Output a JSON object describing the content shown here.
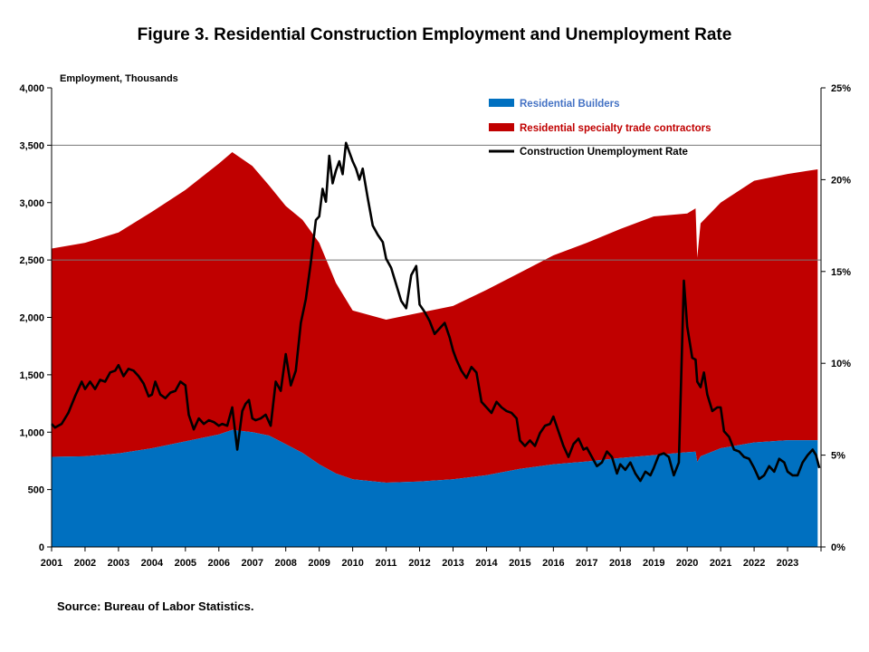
{
  "chart_data": {
    "type": "area",
    "title": "Figure 3. Residential Construction  Employment and Unemployment Rate",
    "ylabel": "Employment, Thousands",
    "y2label": "",
    "xlabel": "",
    "ylim": [
      0,
      4000
    ],
    "y2lim": [
      0,
      25
    ],
    "xlim": [
      2001,
      2024
    ],
    "y_ticks": [
      "0",
      "500",
      "1,000",
      "1,500",
      "2,000",
      "2,500",
      "3,000",
      "3,500",
      "4,000"
    ],
    "y2_ticks": [
      "0%",
      "5%",
      "10%",
      "15%",
      "20%",
      "25%"
    ],
    "x_ticks": [
      "2001",
      "2002",
      "2003",
      "2004",
      "2005",
      "2006",
      "2007",
      "2008",
      "2009",
      "2010",
      "2011",
      "2012",
      "2013",
      "2014",
      "2015",
      "2016",
      "2017",
      "2018",
      "2019",
      "2020",
      "2021",
      "2022",
      "2023"
    ],
    "grid": "horizontal at 2,500 and 3,500",
    "legend_position": "top-center",
    "series": [
      {
        "name": "Residential Builders",
        "kind": "stacked-area",
        "color": "#0070C0",
        "x": [
          2001,
          2002,
          2003,
          2004,
          2005,
          2006,
          2006.4,
          2007,
          2007.5,
          2008,
          2008.5,
          2009,
          2009.5,
          2010,
          2011,
          2012,
          2013,
          2014,
          2015,
          2016,
          2017,
          2018,
          2019,
          2020,
          2020.25,
          2020.3,
          2020.4,
          2021,
          2022,
          2023,
          2023.9
        ],
        "values": [
          785,
          790,
          815,
          860,
          920,
          980,
          1020,
          1000,
          970,
          895,
          820,
          720,
          640,
          590,
          560,
          570,
          590,
          625,
          680,
          720,
          745,
          775,
          800,
          825,
          830,
          740,
          790,
          860,
          910,
          930,
          930
        ]
      },
      {
        "name": "Residential specialty trade contractors",
        "kind": "stacked-area",
        "color": "#C00000",
        "x": [
          2001,
          2002,
          2003,
          2004,
          2005,
          2006,
          2006.4,
          2007,
          2007.5,
          2008,
          2008.5,
          2009,
          2009.5,
          2010,
          2011,
          2012,
          2013,
          2014,
          2015,
          2016,
          2017,
          2018,
          2019,
          2020,
          2020.25,
          2020.3,
          2020.4,
          2021,
          2022,
          2023,
          2023.9
        ],
        "values": [
          1815,
          1860,
          1925,
          2060,
          2190,
          2360,
          2420,
          2320,
          2180,
          2075,
          2030,
          1930,
          1660,
          1470,
          1420,
          1470,
          1510,
          1615,
          1710,
          1820,
          1905,
          1995,
          2080,
          2080,
          2120,
          1780,
          2030,
          2140,
          2280,
          2320,
          2360
        ]
      },
      {
        "name": "Construction Unemployment Rate",
        "kind": "line",
        "axis": "right",
        "color": "#000000",
        "x": [
          2001,
          2001.1,
          2001.3,
          2001.5,
          2001.7,
          2001.9,
          2002,
          2002.15,
          2002.3,
          2002.45,
          2002.6,
          2002.75,
          2002.9,
          2003,
          2003.15,
          2003.3,
          2003.45,
          2003.6,
          2003.75,
          2003.9,
          2004,
          2004.1,
          2004.25,
          2004.4,
          2004.55,
          2004.7,
          2004.85,
          2005,
          2005.1,
          2005.25,
          2005.4,
          2005.55,
          2005.7,
          2005.85,
          2006,
          2006.1,
          2006.25,
          2006.4,
          2006.55,
          2006.7,
          2006.8,
          2006.9,
          2007,
          2007.1,
          2007.25,
          2007.4,
          2007.55,
          2007.7,
          2007.85,
          2008,
          2008.15,
          2008.3,
          2008.45,
          2008.6,
          2008.75,
          2008.9,
          2009,
          2009.1,
          2009.2,
          2009.3,
          2009.4,
          2009.5,
          2009.6,
          2009.7,
          2009.8,
          2009.9,
          2010,
          2010.1,
          2010.2,
          2010.3,
          2010.45,
          2010.6,
          2010.75,
          2010.9,
          2011,
          2011.15,
          2011.3,
          2011.45,
          2011.6,
          2011.75,
          2011.9,
          2012,
          2012.15,
          2012.3,
          2012.45,
          2012.6,
          2012.75,
          2012.9,
          2013,
          2013.1,
          2013.25,
          2013.4,
          2013.55,
          2013.7,
          2013.85,
          2014,
          2014.15,
          2014.3,
          2014.45,
          2014.6,
          2014.75,
          2014.9,
          2015,
          2015.15,
          2015.3,
          2015.45,
          2015.6,
          2015.75,
          2015.9,
          2016,
          2016.15,
          2016.3,
          2016.45,
          2016.6,
          2016.75,
          2016.9,
          2017,
          2017.15,
          2017.3,
          2017.45,
          2017.6,
          2017.75,
          2017.9,
          2018,
          2018.15,
          2018.3,
          2018.45,
          2018.6,
          2018.75,
          2018.9,
          2019,
          2019.15,
          2019.3,
          2019.45,
          2019.6,
          2019.75,
          2019.9,
          2020,
          2020.15,
          2020.25,
          2020.3,
          2020.4,
          2020.5,
          2020.6,
          2020.75,
          2020.9,
          2021,
          2021.1,
          2021.25,
          2021.4,
          2021.55,
          2021.7,
          2021.85,
          2022,
          2022.15,
          2022.3,
          2022.45,
          2022.6,
          2022.75,
          2022.9,
          2023,
          2023.15,
          2023.3,
          2023.45,
          2023.6,
          2023.75,
          2023.85,
          2023.95
        ],
        "values": [
          6.7,
          6.5,
          6.7,
          7.3,
          8.2,
          9.0,
          8.6,
          9.0,
          8.6,
          9.1,
          9.0,
          9.5,
          9.6,
          9.9,
          9.3,
          9.7,
          9.6,
          9.3,
          8.9,
          8.2,
          8.3,
          9.0,
          8.3,
          8.1,
          8.4,
          8.5,
          9.0,
          8.8,
          7.2,
          6.4,
          7.0,
          6.7,
          6.9,
          6.8,
          6.6,
          6.7,
          6.6,
          7.6,
          5.3,
          7.4,
          7.8,
          8.0,
          7.0,
          6.9,
          7.0,
          7.2,
          6.6,
          9.0,
          8.5,
          10.5,
          8.8,
          9.6,
          12.2,
          13.5,
          15.5,
          17.8,
          18.0,
          19.5,
          18.8,
          21.3,
          19.8,
          20.5,
          21.0,
          20.3,
          22.0,
          21.5,
          21.0,
          20.6,
          20.0,
          20.6,
          19.0,
          17.5,
          17.0,
          16.6,
          15.7,
          15.2,
          14.3,
          13.4,
          13.0,
          14.8,
          15.3,
          13.2,
          12.8,
          12.3,
          11.6,
          11.9,
          12.2,
          11.4,
          10.7,
          10.2,
          9.6,
          9.2,
          9.8,
          9.5,
          7.9,
          7.6,
          7.3,
          7.9,
          7.6,
          7.4,
          7.3,
          7.0,
          5.8,
          5.5,
          5.8,
          5.5,
          6.2,
          6.6,
          6.7,
          7.1,
          6.3,
          5.5,
          4.9,
          5.6,
          5.9,
          5.3,
          5.4,
          4.9,
          4.4,
          4.6,
          5.2,
          4.9,
          4.0,
          4.5,
          4.2,
          4.6,
          4.0,
          3.6,
          4.1,
          3.9,
          4.3,
          5.0,
          5.1,
          4.9,
          3.9,
          4.6,
          14.5,
          12.0,
          10.3,
          10.2,
          9.0,
          8.7,
          9.5,
          8.3,
          7.4,
          7.6,
          7.6,
          6.3,
          6.0,
          5.3,
          5.2,
          4.9,
          4.8,
          4.3,
          3.7,
          3.9,
          4.4,
          4.1,
          4.8,
          4.6,
          4.1,
          3.9,
          3.9,
          4.6,
          5.0,
          5.3,
          5.0,
          4.3
        ]
      }
    ]
  },
  "source": "Source: Bureau of Labor Statistics."
}
